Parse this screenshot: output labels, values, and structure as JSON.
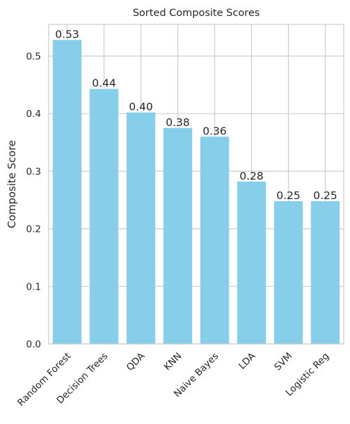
{
  "chart_data": {
    "type": "bar",
    "title": "Sorted Composite Scores",
    "xlabel": "",
    "ylabel": "Composite Score",
    "categories": [
      "Random Forest",
      "Decision Trees",
      "QDA",
      "KNN",
      "Naive Bayes",
      "LDA",
      "SVM",
      "Logistic Reg"
    ],
    "values": [
      0.528,
      0.443,
      0.402,
      0.375,
      0.36,
      0.282,
      0.248,
      0.248
    ],
    "value_labels": [
      "0.53",
      "0.44",
      "0.40",
      "0.38",
      "0.36",
      "0.28",
      "0.25",
      "0.25"
    ],
    "ylim": [
      0,
      0.555
    ],
    "yticks": [
      0.0,
      0.1,
      0.2,
      0.3,
      0.4,
      0.5
    ],
    "ytick_labels": [
      "0.0",
      "0.1",
      "0.2",
      "0.3",
      "0.4",
      "0.5"
    ],
    "grid": true,
    "bar_color": "#87CEEB",
    "grid_color": "#cccccc",
    "frame_color": "#cccccc"
  }
}
